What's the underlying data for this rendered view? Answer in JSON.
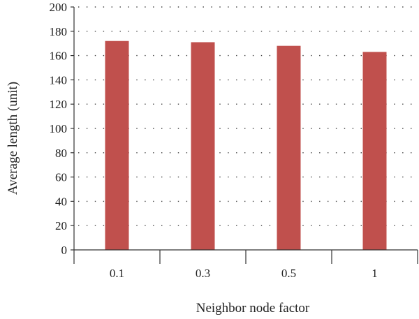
{
  "chart_data": {
    "type": "bar",
    "categories": [
      "0.1",
      "0.3",
      "0.5",
      "1"
    ],
    "values": [
      172,
      171,
      168,
      163
    ],
    "xlabel": "Neighbor node factor",
    "ylabel": "Average length (unit)",
    "ylim": [
      0,
      200
    ],
    "yticks": [
      0,
      20,
      40,
      60,
      80,
      100,
      120,
      140,
      160,
      180,
      200
    ],
    "grid": "horizontal dotted",
    "bar_color": "#c0504d"
  }
}
